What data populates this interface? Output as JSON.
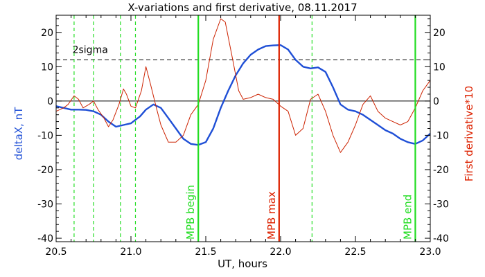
{
  "chart_data": {
    "type": "line",
    "title": "X-variations and first derivative, 08.11.2017",
    "xlabel": "UT, hours",
    "ylabel_left": "deltaX, nT",
    "ylabel_right": "First derivative*10",
    "xlim": [
      20.5,
      23.0
    ],
    "ylim": [
      -41,
      25
    ],
    "x_ticks": [
      20.5,
      21.0,
      21.5,
      22.0,
      22.5,
      23.0
    ],
    "x_tick_labels": [
      "20.5",
      "21.0",
      "21.5",
      "22.0",
      "22.5",
      "23.0"
    ],
    "y_ticks": [
      20,
      10,
      0,
      -10,
      -20,
      -30,
      -40
    ],
    "y_tick_labels": [
      "20",
      "10",
      "0",
      "-10",
      "-20",
      "-30",
      "-40"
    ],
    "grid": false,
    "sigma": {
      "label": "2sigma",
      "y": 12
    },
    "zero_line": 0,
    "series": [
      {
        "name": "deltaX, nT",
        "color": "#1f4fd6",
        "axis": "left",
        "x": [
          20.5,
          20.55,
          20.6,
          20.65,
          20.7,
          20.75,
          20.8,
          20.85,
          20.9,
          20.95,
          21.0,
          21.03,
          21.06,
          21.1,
          21.15,
          21.2,
          21.25,
          21.3,
          21.35,
          21.4,
          21.45,
          21.5,
          21.55,
          21.6,
          21.65,
          21.7,
          21.75,
          21.8,
          21.85,
          21.9,
          21.95,
          22.0,
          22.05,
          22.1,
          22.15,
          22.2,
          22.25,
          22.3,
          22.35,
          22.4,
          22.45,
          22.5,
          22.55,
          22.6,
          22.65,
          22.7,
          22.75,
          22.8,
          22.85,
          22.9,
          22.95,
          23.0
        ],
        "y": [
          -1.5,
          -2,
          -2.5,
          -2.5,
          -2.6,
          -3,
          -4,
          -6,
          -7.5,
          -7,
          -6.5,
          -5.5,
          -4.5,
          -2.5,
          -1,
          -2,
          -5,
          -8,
          -11,
          -12.5,
          -12.8,
          -12,
          -8,
          -2,
          3,
          7.5,
          11,
          13.5,
          15,
          16,
          16.2,
          16.3,
          15,
          12,
          10,
          9.5,
          9.8,
          8.5,
          4,
          -1,
          -2.5,
          -3,
          -4,
          -5.5,
          -7,
          -8.5,
          -9.5,
          -11,
          -12,
          -12.5,
          -11.5,
          -9.5
        ]
      },
      {
        "name": "First derivative*10",
        "color": "#cc2200",
        "axis": "right",
        "x": [
          20.5,
          20.55,
          20.58,
          20.62,
          20.65,
          20.68,
          20.72,
          20.75,
          20.78,
          20.82,
          20.85,
          20.88,
          20.92,
          20.95,
          20.97,
          21.0,
          21.03,
          21.07,
          21.1,
          21.13,
          21.17,
          21.2,
          21.25,
          21.3,
          21.35,
          21.4,
          21.45,
          21.5,
          21.55,
          21.6,
          21.63,
          21.68,
          21.72,
          21.75,
          21.8,
          21.85,
          21.9,
          21.95,
          22.0,
          22.05,
          22.1,
          22.15,
          22.2,
          22.25,
          22.3,
          22.35,
          22.4,
          22.45,
          22.5,
          22.55,
          22.6,
          22.65,
          22.7,
          22.75,
          22.8,
          22.85,
          22.9,
          22.95,
          23.0
        ],
        "y": [
          -3,
          -2,
          -1,
          1.5,
          0.5,
          -2,
          -1,
          0,
          -2.5,
          -5,
          -7.5,
          -5.5,
          -1,
          3.5,
          2,
          -1.5,
          -2,
          3,
          10,
          5,
          -2,
          -7,
          -12,
          -12,
          -10,
          -4,
          -1,
          6,
          18,
          24,
          23,
          12,
          3,
          0.5,
          1,
          2,
          1,
          0.5,
          -1.5,
          -3,
          -10,
          -8,
          0.5,
          2,
          -3,
          -10,
          -15,
          -12,
          -7,
          -1,
          1.5,
          -3,
          -5,
          -6,
          -7,
          -6,
          -2,
          3,
          6
        ]
      }
    ],
    "markers": [
      {
        "label": "MPB begin",
        "x": 21.45,
        "color": "#22dd22",
        "style": "solid"
      },
      {
        "label": "MPB max",
        "x": 21.99,
        "color": "#dd2200",
        "style": "solid"
      },
      {
        "label": "MPB end",
        "x": 22.9,
        "color": "#22dd22",
        "style": "solid"
      }
    ],
    "dashed_markers": [
      20.62,
      20.75,
      20.93,
      21.03,
      22.21
    ],
    "dashed_marker_color": "#22dd22"
  }
}
